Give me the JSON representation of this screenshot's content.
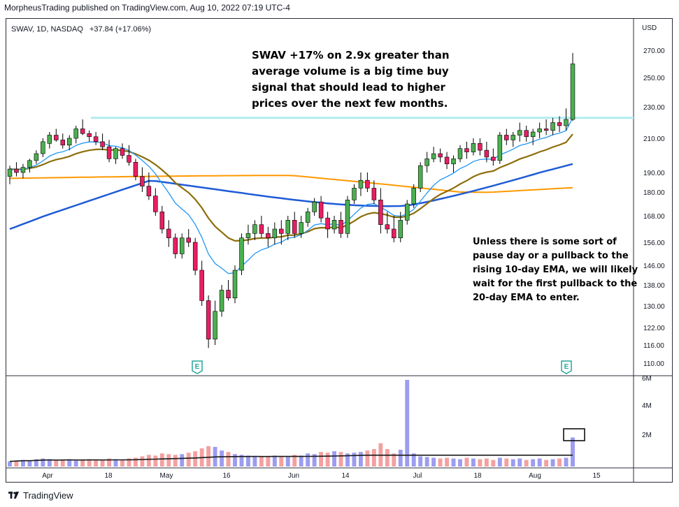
{
  "header": {
    "attribution": "MorpheusTrading published on TradingView.com, Aug 10, 2022 07:19 UTC-4",
    "symbol_info": "SWAV, 1D, NASDAQ",
    "change": "+37.84 (+17.06%)"
  },
  "annotations": {
    "main": "SWAV +17% on 2.9x greater than average volume is a big time buy signal that should lead to higher prices over the next few months.",
    "secondary": "Unless there is some sort of pause day or a pullback to the rising 10-day EMA, we will likely wait for the first pullback to the 20-day EMA to enter."
  },
  "footer": {
    "brand": "TradingView"
  },
  "colors": {
    "up": "#4caf50",
    "down": "#e91e63",
    "ema10": "#2196f3",
    "ema20": "#8d6e0a",
    "ma50": "#1e5bd6",
    "ma200": "#ff9800",
    "resistance": "#b2ebf2",
    "vol_up": "#9c9cf0",
    "vol_down": "#f4a0a0"
  },
  "chart_data": {
    "type": "candlestick",
    "currency": "USD",
    "price_axis_ticks": [
      270,
      250,
      230,
      210,
      190,
      180,
      168,
      156,
      146,
      138,
      130,
      122,
      116,
      110
    ],
    "volume_axis_ticks": [
      "6M",
      "4M",
      "2M"
    ],
    "x_tick_labels": [
      "Apr",
      "18",
      "May",
      "16",
      "Jun",
      "14",
      "Jul",
      "18",
      "Aug",
      "15"
    ],
    "earnings_markers": [
      "E",
      "E"
    ],
    "resistance_level": 223,
    "last_change": 37.84,
    "last_change_pct": 17.06,
    "ohlc": [
      [
        188,
        194,
        184,
        192
      ],
      [
        192,
        196,
        188,
        190
      ],
      [
        190,
        195,
        187,
        193
      ],
      [
        193,
        198,
        190,
        197
      ],
      [
        197,
        203,
        195,
        201
      ],
      [
        201,
        210,
        199,
        208
      ],
      [
        207,
        214,
        204,
        212
      ],
      [
        212,
        216,
        208,
        209
      ],
      [
        209,
        213,
        204,
        206
      ],
      [
        206,
        212,
        203,
        210
      ],
      [
        210,
        218,
        207,
        216
      ],
      [
        216,
        222,
        212,
        213
      ],
      [
        213,
        215,
        208,
        211
      ],
      [
        211,
        214,
        206,
        208
      ],
      [
        208,
        213,
        203,
        205
      ],
      [
        205,
        209,
        196,
        198
      ],
      [
        198,
        205,
        195,
        204
      ],
      [
        204,
        207,
        198,
        200
      ],
      [
        200,
        206,
        194,
        196
      ],
      [
        196,
        198,
        186,
        188
      ],
      [
        188,
        193,
        180,
        183
      ],
      [
        183,
        190,
        176,
        178
      ],
      [
        178,
        182,
        168,
        170
      ],
      [
        170,
        173,
        160,
        162
      ],
      [
        162,
        166,
        154,
        158
      ],
      [
        158,
        160,
        149,
        151
      ],
      [
        151,
        160,
        149,
        158
      ],
      [
        158,
        162,
        154,
        156
      ],
      [
        156,
        158,
        142,
        144
      ],
      [
        144,
        148,
        130,
        132
      ],
      [
        132,
        134,
        115,
        118
      ],
      [
        118,
        132,
        116,
        128
      ],
      [
        128,
        138,
        126,
        136
      ],
      [
        136,
        140,
        132,
        133
      ],
      [
        133,
        146,
        131,
        144
      ],
      [
        144,
        160,
        142,
        158
      ],
      [
        158,
        164,
        155,
        160
      ],
      [
        160,
        166,
        157,
        164
      ],
      [
        164,
        168,
        158,
        160
      ],
      [
        160,
        163,
        154,
        158
      ],
      [
        158,
        165,
        155,
        162
      ],
      [
        162,
        166,
        155,
        160
      ],
      [
        160,
        168,
        157,
        166
      ],
      [
        166,
        170,
        158,
        160
      ],
      [
        160,
        168,
        158,
        165
      ],
      [
        165,
        172,
        163,
        170
      ],
      [
        170,
        177,
        168,
        175
      ],
      [
        175,
        178,
        165,
        167
      ],
      [
        167,
        170,
        158,
        162
      ],
      [
        162,
        168,
        160,
        166
      ],
      [
        166,
        170,
        158,
        160
      ],
      [
        160,
        178,
        158,
        176
      ],
      [
        176,
        184,
        174,
        182
      ],
      [
        182,
        190,
        178,
        186
      ],
      [
        186,
        190,
        180,
        182
      ],
      [
        182,
        186,
        174,
        176
      ],
      [
        176,
        182,
        160,
        164
      ],
      [
        164,
        170,
        160,
        162
      ],
      [
        162,
        168,
        156,
        158
      ],
      [
        158,
        170,
        156,
        166
      ],
      [
        166,
        176,
        164,
        174
      ],
      [
        174,
        184,
        172,
        182
      ],
      [
        182,
        196,
        180,
        194
      ],
      [
        194,
        202,
        190,
        198
      ],
      [
        198,
        205,
        196,
        201
      ],
      [
        201,
        204,
        196,
        199
      ],
      [
        199,
        202,
        192,
        195
      ],
      [
        195,
        200,
        190,
        198
      ],
      [
        198,
        206,
        196,
        204
      ],
      [
        204,
        208,
        198,
        202
      ],
      [
        202,
        210,
        200,
        207
      ],
      [
        207,
        210,
        200,
        203
      ],
      [
        203,
        208,
        196,
        199
      ],
      [
        199,
        204,
        194,
        197
      ],
      [
        197,
        214,
        195,
        212
      ],
      [
        212,
        216,
        206,
        209
      ],
      [
        209,
        214,
        205,
        212
      ],
      [
        212,
        220,
        208,
        215
      ],
      [
        215,
        218,
        208,
        211
      ],
      [
        211,
        216,
        206,
        214
      ],
      [
        214,
        220,
        210,
        216
      ],
      [
        216,
        222,
        212,
        215
      ],
      [
        215,
        223,
        212,
        220
      ],
      [
        220,
        224,
        214,
        218
      ],
      [
        218,
        229,
        215,
        222
      ],
      [
        222,
        268,
        221,
        260
      ]
    ],
    "volume_millions": [
      0.35,
      0.4,
      0.45,
      0.4,
      0.5,
      0.55,
      0.5,
      0.4,
      0.45,
      0.5,
      0.4,
      0.45,
      0.5,
      0.45,
      0.4,
      0.55,
      0.5,
      0.45,
      0.55,
      0.6,
      0.7,
      0.8,
      0.75,
      0.9,
      0.85,
      0.8,
      0.85,
      0.95,
      1.05,
      1.25,
      1.4,
      1.35,
      1.1,
      1.0,
      0.85,
      0.8,
      0.75,
      0.7,
      0.65,
      0.7,
      0.75,
      0.7,
      0.65,
      0.8,
      0.75,
      0.9,
      0.85,
      1.0,
      0.95,
      1.05,
      1.0,
      0.9,
      0.95,
      1.0,
      1.1,
      1.2,
      1.6,
      1.2,
      0.9,
      1.15,
      7.8,
      0.9,
      0.7,
      0.65,
      0.6,
      0.55,
      0.6,
      0.55,
      0.5,
      0.6,
      0.55,
      0.5,
      0.55,
      0.45,
      0.6,
      0.55,
      0.5,
      0.55,
      0.45,
      0.5,
      0.55,
      0.45,
      0.5,
      0.55,
      0.6,
      2.0
    ]
  }
}
